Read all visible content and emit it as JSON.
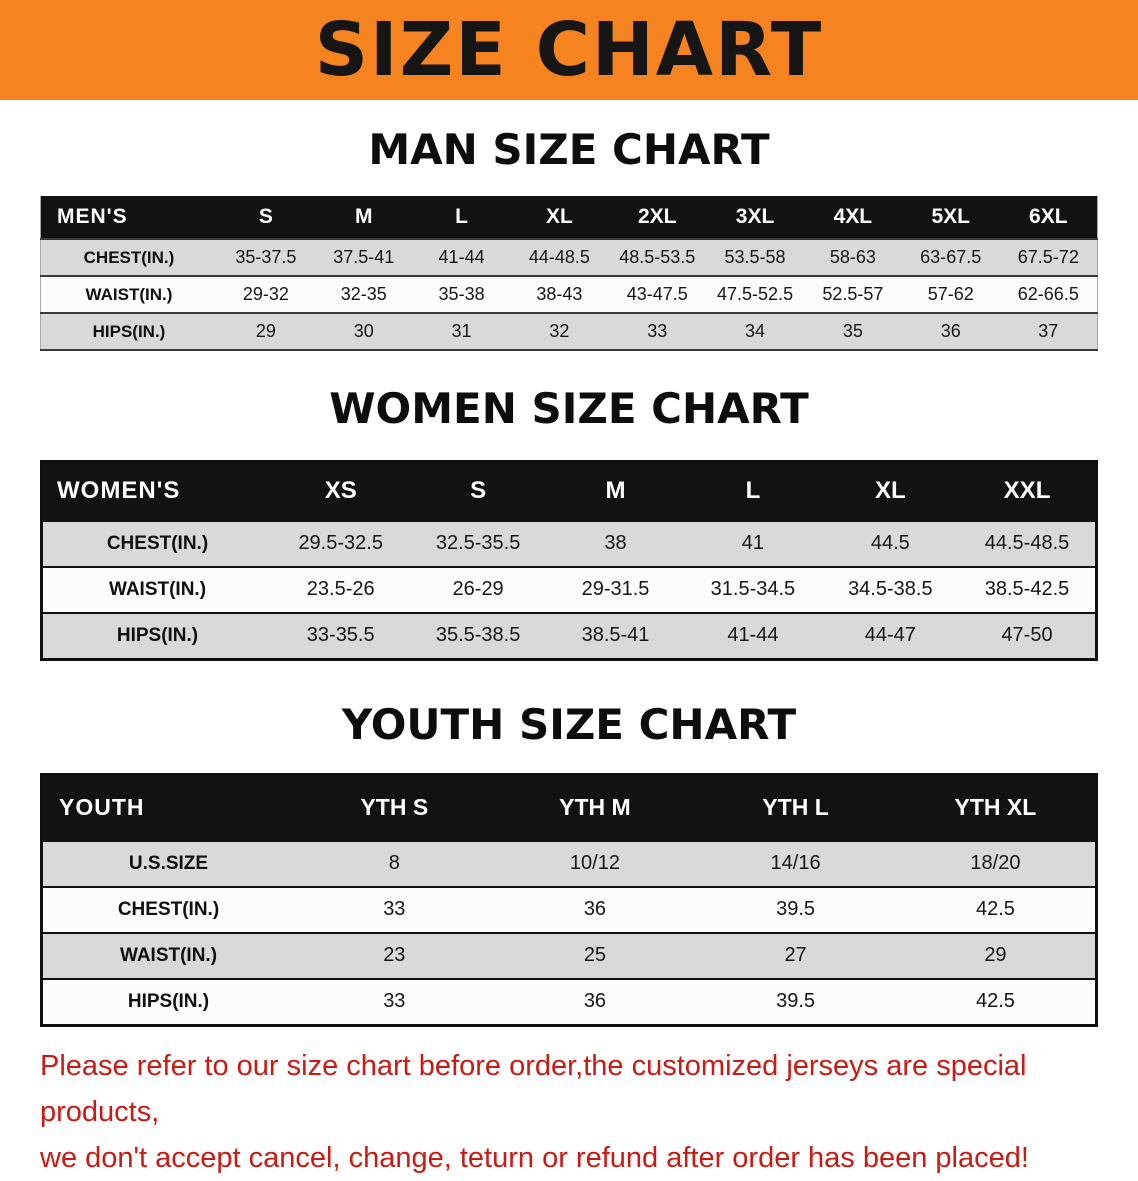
{
  "banner": {
    "title": "SIZE CHART",
    "background": "#f5831f",
    "text_color": "#161616"
  },
  "colors": {
    "table_header_bg": "#121212",
    "table_header_text": "#ffffff",
    "row_stripe_gray": "#d9d9d9",
    "row_stripe_white": "#fcfcfc"
  },
  "sections": [
    {
      "heading": "MAN SIZE CHART",
      "table": {
        "corner_label": "MEN'S",
        "columns": [
          "S",
          "M",
          "L",
          "XL",
          "2XL",
          "3XL",
          "4XL",
          "5XL",
          "6XL"
        ],
        "rows": [
          {
            "label": "CHEST(IN.)",
            "values": [
              "35-37.5",
              "37.5-41",
              "41-44",
              "44-48.5",
              "48.5-53.5",
              "53.5-58",
              "58-63",
              "63-67.5",
              "67.5-72"
            ]
          },
          {
            "label": "WAIST(IN.)",
            "values": [
              "29-32",
              "32-35",
              "35-38",
              "38-43",
              "43-47.5",
              "47.5-52.5",
              "52.5-57",
              "57-62",
              "62-66.5"
            ]
          },
          {
            "label": "HIPS(IN.)",
            "values": [
              "29",
              "30",
              "31",
              "32",
              "33",
              "34",
              "35",
              "36",
              "37"
            ]
          }
        ]
      }
    },
    {
      "heading": "WOMEN SIZE CHART",
      "table": {
        "corner_label": "WOMEN'S",
        "columns": [
          "XS",
          "S",
          "M",
          "L",
          "XL",
          "XXL"
        ],
        "rows": [
          {
            "label": "CHEST(IN.)",
            "values": [
              "29.5-32.5",
              "32.5-35.5",
              "38",
              "41",
              "44.5",
              "44.5-48.5"
            ]
          },
          {
            "label": "WAIST(IN.)",
            "values": [
              "23.5-26",
              "26-29",
              "29-31.5",
              "31.5-34.5",
              "34.5-38.5",
              "38.5-42.5"
            ]
          },
          {
            "label": "HIPS(IN.)",
            "values": [
              "33-35.5",
              "35.5-38.5",
              "38.5-41",
              "41-44",
              "44-47",
              "47-50"
            ]
          }
        ]
      }
    },
    {
      "heading": "YOUTH SIZE CHART",
      "table": {
        "corner_label": "YOUTH",
        "columns": [
          "YTH S",
          "YTH M",
          "YTH L",
          "YTH XL"
        ],
        "rows": [
          {
            "label": "U.S.SIZE",
            "values": [
              "8",
              "10/12",
              "14/16",
              "18/20"
            ]
          },
          {
            "label": "CHEST(IN.)",
            "values": [
              "33",
              "36",
              "39.5",
              "42.5"
            ]
          },
          {
            "label": "WAIST(IN.)",
            "values": [
              "23",
              "25",
              "27",
              "29"
            ]
          },
          {
            "label": "HIPS(IN.)",
            "values": [
              "33",
              "36",
              "39.5",
              "42.5"
            ]
          }
        ]
      }
    }
  ],
  "footer": {
    "line1": "Please refer to our size chart before order,the customized jerseys are special products,",
    "line2": "we don't accept cancel, change, teturn or refund after order has been placed!",
    "text_color": "#cb1a14"
  }
}
